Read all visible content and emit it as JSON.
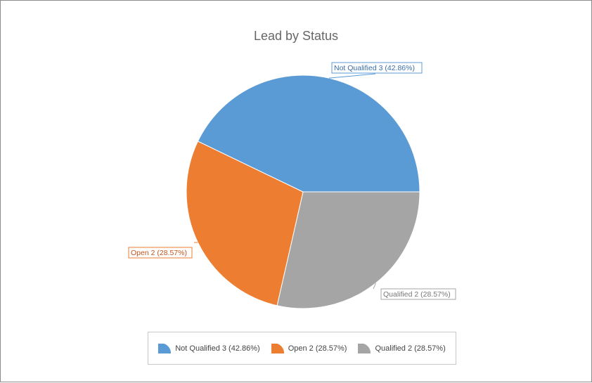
{
  "chart_data": {
    "type": "pie",
    "title": "Lead by Status",
    "slices": [
      {
        "label": "Not Qualified",
        "value": 3,
        "percent": "42.86%",
        "display": "Not Qualified 3 (42.86%)",
        "color": "#5b9bd5"
      },
      {
        "label": "Open",
        "value": 2,
        "percent": "28.57%",
        "display": "Open 2 (28.57%)",
        "color": "#ed7d31"
      },
      {
        "label": "Qualified",
        "value": 2,
        "percent": "28.57%",
        "display": "Qualified 2 (28.57%)",
        "color": "#a5a5a5"
      }
    ],
    "legend_position": "bottom"
  }
}
